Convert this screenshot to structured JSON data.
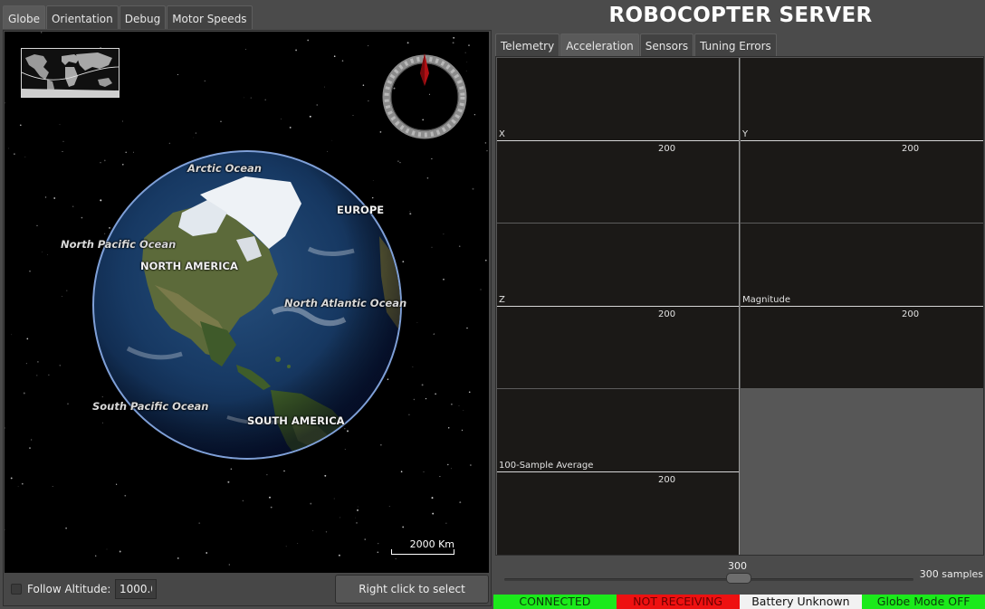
{
  "app_title": "ROBOCOPTER SERVER",
  "left_tabs": [
    {
      "label": "Globe",
      "active": true
    },
    {
      "label": "Orientation",
      "active": false
    },
    {
      "label": "Debug",
      "active": false
    },
    {
      "label": "Motor Speeds",
      "active": false
    }
  ],
  "globe": {
    "labels": {
      "arctic": "Arctic Ocean",
      "europe": "EUROPE",
      "north_pacific": "North Pacific Ocean",
      "north_america": "NORTH AMERICA",
      "north_atlantic": "North Atlantic Ocean",
      "south_pacific": "South Pacific Ocean",
      "south_america": "SOUTH AMERICA"
    },
    "scale_label": "2000 Km",
    "icons": {
      "compass": "compass-icon",
      "overview": "world-map-icon"
    }
  },
  "left_bottom": {
    "follow_altitude_label": "Follow Altitude:",
    "follow_altitude_checked": false,
    "altitude_value": "1000.0",
    "select_location_label": "Right click to select location"
  },
  "right_tabs": [
    {
      "label": "Telemetry",
      "active": false
    },
    {
      "label": "Acceleration",
      "active": true
    },
    {
      "label": "Sensors",
      "active": false
    },
    {
      "label": "Tuning Errors",
      "active": false
    }
  ],
  "plots": [
    {
      "name": "X",
      "tick": "200"
    },
    {
      "name": "Y",
      "tick": "200"
    },
    {
      "name": "Z",
      "tick": "200"
    },
    {
      "name": "Magnitude",
      "tick": "200"
    },
    {
      "name": "100-Sample Average",
      "tick": "200"
    }
  ],
  "samples": {
    "value_label": "300",
    "unit_label": "300 samples",
    "value": 300
  },
  "status": [
    {
      "label": "CONNECTED",
      "bg": "#1bea1b",
      "fg": "#0a3a0a"
    },
    {
      "label": "NOT RECEIVING",
      "bg": "#ee1111",
      "fg": "#6a0000"
    },
    {
      "label": "Battery Unknown",
      "bg": "#f2f2f2",
      "fg": "#111111"
    },
    {
      "label": "Globe Mode OFF",
      "bg": "#1bea1b",
      "fg": "#0a3a0a"
    }
  ]
}
